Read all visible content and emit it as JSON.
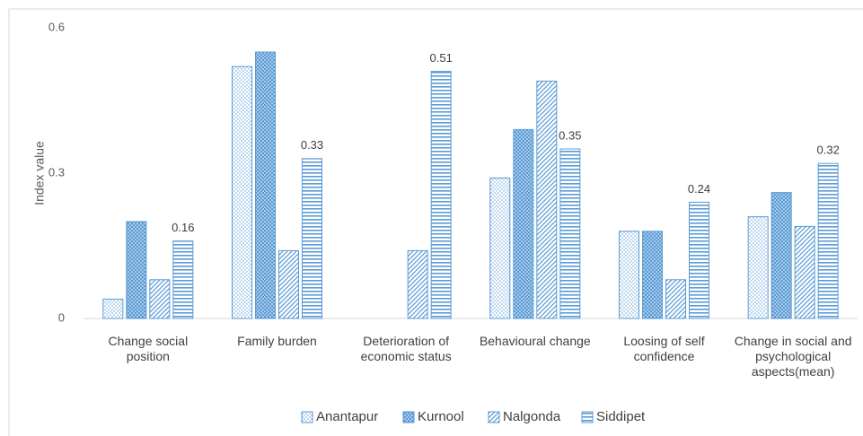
{
  "chart_data": {
    "type": "bar",
    "y_label": "Index value",
    "categories": [
      "Change social position",
      "Family burden",
      "Deterioration of economic status",
      "Behavioural change",
      "Loosing of self confidence",
      "Change in social and psychological aspects(mean)"
    ],
    "series": [
      {
        "name": "Anantapur",
        "color": "#5b9bd5",
        "pattern": "dots",
        "values": [
          0.04,
          0.52,
          0,
          0.29,
          0.18,
          0.21
        ]
      },
      {
        "name": "Kurnool",
        "color": "#5b9bd5",
        "pattern": "solid-dots",
        "values": [
          0.2,
          0.55,
          0,
          0.39,
          0.18,
          0.26
        ]
      },
      {
        "name": "Nalgonda",
        "color": "#5b9bd5",
        "pattern": "diagonal",
        "values": [
          0.08,
          0.14,
          0.14,
          0.49,
          0.08,
          0.19
        ]
      },
      {
        "name": "Siddipet",
        "color": "#5b9bd5",
        "pattern": "horizontal",
        "show_labels": true,
        "values": [
          0.16,
          0.33,
          0.51,
          0.35,
          0.24,
          0.32
        ]
      }
    ],
    "ylim": [
      0,
      0.6
    ],
    "yticks": [
      0,
      0.3,
      0.6
    ],
    "grid": false,
    "legend": "bottom"
  }
}
